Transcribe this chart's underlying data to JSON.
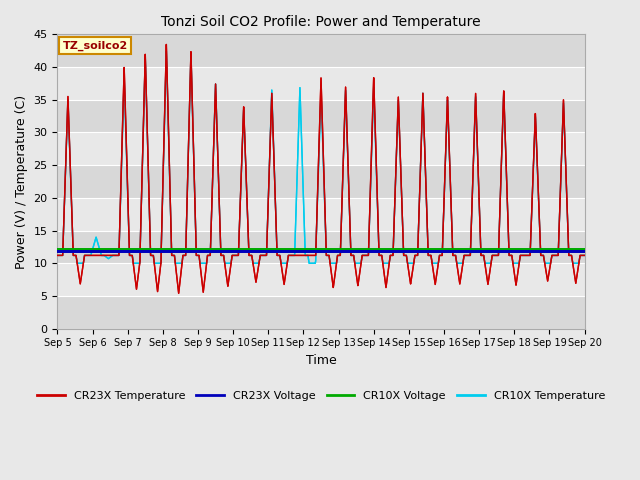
{
  "title": "Tonzi Soil CO2 Profile: Power and Temperature",
  "xlabel": "Time",
  "ylabel": "Power (V) / Temperature (C)",
  "xlim_days": [
    5,
    20
  ],
  "ylim": [
    0,
    45
  ],
  "yticks": [
    0,
    5,
    10,
    15,
    20,
    25,
    30,
    35,
    40,
    45
  ],
  "xtick_labels": [
    "Sep 5",
    "Sep 6",
    "Sep 7",
    "Sep 8",
    "Sep 9",
    "Sep 10",
    "Sep 11",
    "Sep 12",
    "Sep 13",
    "Sep 14",
    "Sep 15",
    "Sep 16",
    "Sep 17",
    "Sep 18",
    "Sep 19",
    "Sep 20"
  ],
  "cr23x_temp_color": "#cc0000",
  "cr23x_volt_color": "#0000bb",
  "cr10x_volt_color": "#00aa00",
  "cr10x_temp_color": "#00ccee",
  "fig_bg_color": "#e8e8e8",
  "plot_bg_color": "#e0e0e0",
  "annotation_text": "TZ_soilco2",
  "annotation_bg": "#ffffcc",
  "annotation_border": "#cc8800",
  "cr23x_volt_value": 11.8,
  "cr10x_volt_value": 12.1,
  "legend_labels": [
    "CR23X Temperature",
    "CR23X Voltage",
    "CR10X Voltage",
    "CR10X Temperature"
  ],
  "peak_days": [
    5.3,
    6.1,
    6.9,
    7.5,
    8.1,
    8.8,
    9.5,
    10.3,
    11.1,
    11.9,
    12.5,
    13.2,
    14.0,
    14.7,
    15.4,
    16.1,
    16.9,
    17.7,
    18.6,
    19.4
  ],
  "cr23x_peaks": [
    35.5,
    7.5,
    40.0,
    42.0,
    43.5,
    42.5,
    37.5,
    34.0,
    36.0,
    10.0,
    38.5,
    37.0,
    38.5,
    35.5,
    36.0,
    35.5,
    36.0,
    36.5,
    33.0,
    35.0
  ],
  "cr10x_peaks": [
    35.0,
    14.0,
    38.5,
    41.5,
    42.5,
    42.0,
    37.5,
    33.5,
    36.5,
    37.0,
    36.5,
    36.5,
    37.0,
    35.0,
    36.0,
    35.0,
    35.5,
    36.0,
    32.5,
    34.5
  ],
  "base_value": 11.2
}
